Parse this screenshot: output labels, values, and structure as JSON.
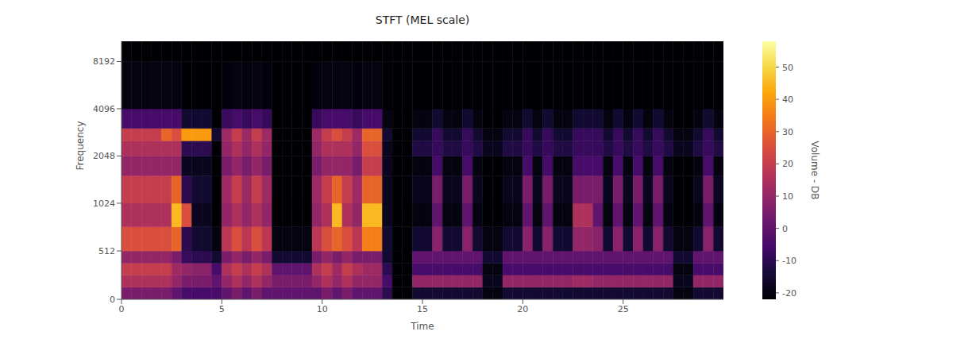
{
  "chart_data": {
    "type": "heatmap",
    "title": "STFT (MEL scale)",
    "x_label": "Time",
    "y_label": "Frequency",
    "xlim": [
      0,
      30
    ],
    "xticks": [
      0,
      5,
      10,
      15,
      20,
      25
    ],
    "ylim": [
      0,
      11025
    ],
    "yticks": [
      0,
      512,
      1024,
      2048,
      4096,
      8192
    ],
    "x_edges": [
      0,
      0.5,
      1,
      1.5,
      2,
      2.5,
      3,
      3.5,
      4,
      4.5,
      5,
      5.5,
      6,
      6.5,
      7,
      7.5,
      8,
      8.5,
      9,
      9.5,
      10,
      10.5,
      11,
      11.5,
      12,
      12.5,
      13,
      13.5,
      14,
      14.5,
      15,
      15.5,
      16,
      16.5,
      17,
      17.5,
      18,
      18.5,
      19,
      19.5,
      20,
      20.5,
      21,
      21.5,
      22,
      22.5,
      23,
      23.5,
      24,
      24.5,
      25,
      25.5,
      26,
      26.5,
      27,
      27.5,
      28,
      28.5,
      29,
      29.5,
      30
    ],
    "y_edges": [
      0,
      128,
      256,
      384,
      512,
      768,
      1024,
      1536,
      2048,
      2560,
      3072,
      4096,
      8192,
      11025
    ],
    "z": [
      [
        5,
        15,
        20,
        10,
        25,
        15,
        20,
        10,
        15,
        20,
        -5,
        -20,
        -22
      ],
      [
        5,
        15,
        20,
        10,
        25,
        15,
        20,
        10,
        15,
        20,
        -5,
        -20,
        -22
      ],
      [
        5,
        15,
        20,
        10,
        25,
        15,
        20,
        10,
        15,
        20,
        -5,
        -20,
        -22
      ],
      [
        5,
        15,
        20,
        10,
        25,
        15,
        20,
        10,
        15,
        20,
        -5,
        -20,
        -22
      ],
      [
        5,
        15,
        20,
        10,
        25,
        15,
        20,
        10,
        15,
        30,
        -5,
        -20,
        -22
      ],
      [
        0,
        10,
        12,
        5,
        30,
        45,
        30,
        10,
        15,
        25,
        -5,
        -20,
        -22
      ],
      [
        -5,
        5,
        10,
        -8,
        -10,
        25,
        -10,
        -18,
        -10,
        40,
        -15,
        -22,
        -22
      ],
      [
        -5,
        5,
        8,
        -10,
        -15,
        -18,
        -15,
        -18,
        -10,
        40,
        -15,
        -22,
        -22
      ],
      [
        -5,
        5,
        8,
        -10,
        -15,
        -18,
        -15,
        -18,
        -10,
        40,
        -15,
        -22,
        -22
      ],
      [
        -5,
        0,
        -5,
        -15,
        -20,
        -22,
        -22,
        -22,
        -22,
        -15,
        -22,
        -22,
        -22
      ],
      [
        0,
        10,
        15,
        5,
        18,
        10,
        12,
        5,
        10,
        12,
        -8,
        -21,
        -22
      ],
      [
        5,
        15,
        20,
        10,
        25,
        15,
        20,
        10,
        15,
        20,
        -5,
        -20,
        -22
      ],
      [
        0,
        10,
        15,
        5,
        18,
        10,
        12,
        5,
        10,
        12,
        -8,
        -21,
        -22
      ],
      [
        5,
        15,
        20,
        10,
        25,
        15,
        20,
        10,
        15,
        20,
        -5,
        -20,
        -22
      ],
      [
        0,
        10,
        15,
        5,
        18,
        10,
        12,
        5,
        10,
        12,
        -8,
        -21,
        -22
      ],
      [
        0,
        5,
        0,
        -15,
        -20,
        -22,
        -22,
        -22,
        -22,
        -22,
        -22,
        -22,
        -22
      ],
      [
        0,
        5,
        0,
        -15,
        -20,
        -22,
        -22,
        -22,
        -22,
        -22,
        -22,
        -22,
        -22
      ],
      [
        0,
        5,
        0,
        -15,
        -20,
        -22,
        -22,
        -22,
        -22,
        -22,
        -22,
        -22,
        -22
      ],
      [
        0,
        5,
        0,
        -15,
        -20,
        -22,
        -22,
        -22,
        -22,
        -22,
        -22,
        -22,
        -22
      ],
      [
        0,
        10,
        15,
        5,
        18,
        10,
        12,
        5,
        10,
        12,
        -8,
        -21,
        -22
      ],
      [
        5,
        15,
        20,
        10,
        25,
        15,
        20,
        10,
        15,
        20,
        -5,
        -20,
        -22
      ],
      [
        0,
        10,
        12,
        5,
        30,
        45,
        30,
        10,
        15,
        25,
        -5,
        -20,
        -22
      ],
      [
        5,
        15,
        20,
        10,
        25,
        15,
        20,
        10,
        15,
        20,
        -5,
        -20,
        -22
      ],
      [
        0,
        10,
        15,
        5,
        18,
        10,
        12,
        5,
        10,
        12,
        -8,
        -21,
        -22
      ],
      [
        0,
        10,
        12,
        5,
        35,
        45,
        30,
        20,
        25,
        30,
        -5,
        -20,
        -22
      ],
      [
        0,
        10,
        12,
        5,
        35,
        45,
        30,
        20,
        25,
        30,
        -5,
        -20,
        -22
      ],
      [
        -10,
        -5,
        -10,
        -15,
        -15,
        -18,
        -18,
        -18,
        -18,
        -15,
        -20,
        -22,
        -22
      ],
      [
        -22,
        -22,
        -22,
        -22,
        -22,
        -22,
        -22,
        -22,
        -22,
        -22,
        -22,
        -22,
        -22
      ],
      [
        -22,
        -22,
        -22,
        -22,
        -22,
        -22,
        -22,
        -22,
        -22,
        -22,
        -22,
        -22,
        -22
      ],
      [
        -15,
        10,
        -5,
        0,
        -15,
        -20,
        -18,
        -20,
        -12,
        -15,
        -20,
        -22,
        -22
      ],
      [
        -15,
        10,
        -5,
        0,
        -15,
        -20,
        -18,
        -20,
        -12,
        -15,
        -20,
        -22,
        -22
      ],
      [
        -15,
        10,
        -5,
        0,
        8,
        0,
        5,
        -5,
        -8,
        -8,
        -15,
        -22,
        -22
      ],
      [
        -15,
        10,
        -5,
        0,
        -15,
        -20,
        -18,
        -20,
        -12,
        -15,
        -20,
        -22,
        -22
      ],
      [
        -15,
        10,
        -5,
        0,
        -15,
        -20,
        -18,
        -20,
        -12,
        -15,
        -20,
        -22,
        -22
      ],
      [
        -15,
        10,
        -5,
        0,
        8,
        0,
        5,
        -5,
        -8,
        -8,
        -15,
        -22,
        -22
      ],
      [
        -15,
        10,
        -5,
        0,
        -15,
        -20,
        -18,
        -20,
        -12,
        -15,
        -20,
        -22,
        -22
      ],
      [
        -20,
        -18,
        -20,
        -15,
        -20,
        -22,
        -22,
        -22,
        -18,
        -20,
        -22,
        -22,
        -22
      ],
      [
        -20,
        -18,
        -20,
        -15,
        -20,
        -22,
        -22,
        -22,
        -18,
        -20,
        -22,
        -22,
        -22
      ],
      [
        -15,
        10,
        -5,
        0,
        -15,
        -20,
        -18,
        -20,
        -12,
        -15,
        -20,
        -22,
        -22
      ],
      [
        -15,
        10,
        -5,
        0,
        -15,
        -20,
        -18,
        -20,
        -12,
        -15,
        -20,
        -22,
        -22
      ],
      [
        -15,
        10,
        -5,
        0,
        8,
        0,
        5,
        -5,
        -8,
        -8,
        -15,
        -22,
        -22
      ],
      [
        -15,
        10,
        -5,
        0,
        -15,
        -20,
        -18,
        -20,
        -12,
        -15,
        -20,
        -22,
        -22
      ],
      [
        -15,
        10,
        -5,
        0,
        8,
        0,
        5,
        -5,
        -8,
        -8,
        -15,
        -22,
        -22
      ],
      [
        -15,
        10,
        -5,
        0,
        -15,
        -20,
        -18,
        -20,
        -12,
        -15,
        -20,
        -22,
        -22
      ],
      [
        -15,
        10,
        -5,
        0,
        -15,
        -20,
        -18,
        -20,
        -12,
        -15,
        -20,
        -22,
        -22
      ],
      [
        -15,
        12,
        -5,
        0,
        10,
        15,
        5,
        -5,
        -8,
        -8,
        -15,
        -22,
        -22
      ],
      [
        -15,
        12,
        -5,
        0,
        10,
        15,
        5,
        -5,
        -8,
        -8,
        -15,
        -22,
        -22
      ],
      [
        -15,
        10,
        -5,
        0,
        8,
        0,
        5,
        -5,
        -8,
        -8,
        -15,
        -22,
        -22
      ],
      [
        -15,
        10,
        -5,
        0,
        -15,
        -20,
        -18,
        -20,
        -12,
        -15,
        -20,
        -22,
        -22
      ],
      [
        -15,
        10,
        -5,
        0,
        8,
        0,
        5,
        -5,
        -8,
        -8,
        -15,
        -22,
        -22
      ],
      [
        -15,
        10,
        -5,
        0,
        -15,
        -20,
        -18,
        -20,
        -12,
        -15,
        -20,
        -22,
        -22
      ],
      [
        -15,
        10,
        -5,
        0,
        8,
        0,
        5,
        -5,
        -8,
        -8,
        -15,
        -22,
        -22
      ],
      [
        -15,
        10,
        -5,
        0,
        -15,
        -20,
        -18,
        -20,
        -12,
        -15,
        -20,
        -22,
        -22
      ],
      [
        -15,
        10,
        -5,
        0,
        8,
        0,
        5,
        -5,
        -8,
        -8,
        -15,
        -22,
        -22
      ],
      [
        -15,
        10,
        -5,
        0,
        -15,
        -20,
        -18,
        -20,
        -12,
        -15,
        -20,
        -22,
        -22
      ],
      [
        -20,
        -18,
        -20,
        -15,
        -20,
        -22,
        -22,
        -22,
        -18,
        -20,
        -22,
        -22,
        -22
      ],
      [
        -20,
        -18,
        -20,
        -15,
        -20,
        -22,
        -22,
        -22,
        -18,
        -20,
        -22,
        -22,
        -22
      ],
      [
        -15,
        10,
        -5,
        0,
        -15,
        -20,
        -18,
        -20,
        -12,
        -15,
        -20,
        -22,
        -22
      ],
      [
        -15,
        10,
        -5,
        0,
        8,
        0,
        5,
        -5,
        -8,
        -8,
        -15,
        -22,
        -22
      ],
      [
        -15,
        10,
        -5,
        0,
        -15,
        -20,
        -18,
        -20,
        -12,
        -15,
        -20,
        -22,
        -22
      ]
    ],
    "colorbar": {
      "label": "Volume - DB",
      "range": [
        -22,
        58
      ],
      "ticks": [
        -20,
        -10,
        0,
        10,
        20,
        30,
        40,
        50
      ]
    }
  }
}
